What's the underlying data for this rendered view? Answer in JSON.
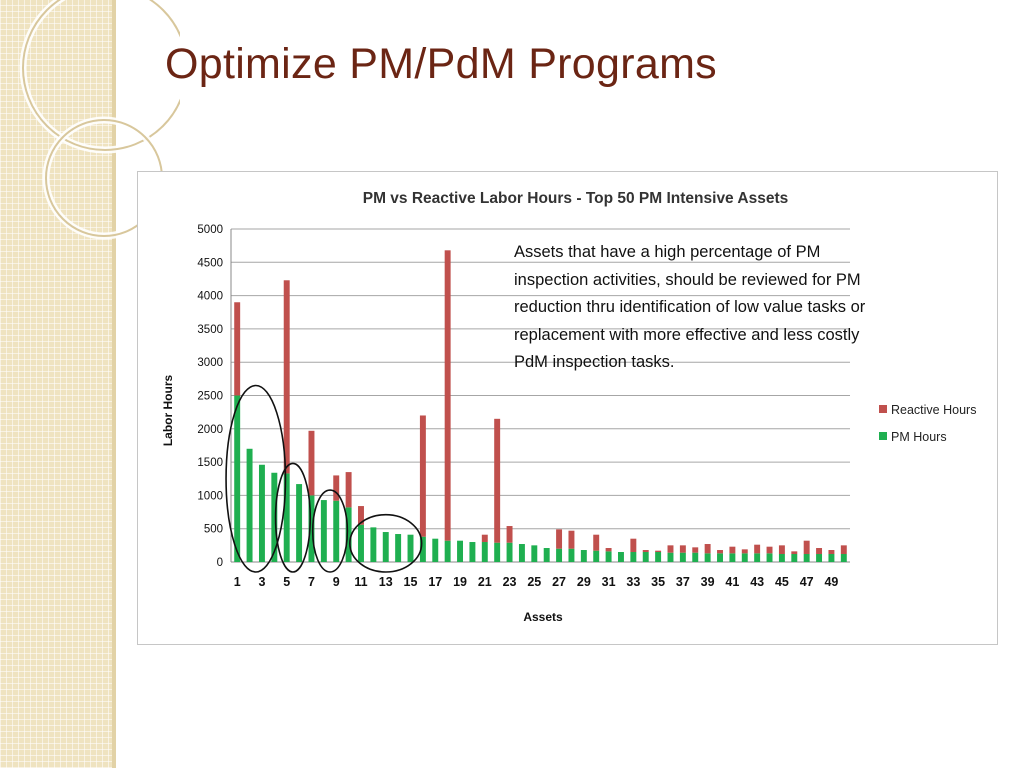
{
  "slide": {
    "title": "Optimize PM/PdM Programs",
    "callout": "Assets that have a high percentage of PM inspection activities, should be reviewed for PM reduction thru identification of low value tasks or replacement with more effective and less costly PdM inspection tasks."
  },
  "colors": {
    "title": "#6b2514",
    "reactive": "#c0504d",
    "pm": "#1faf50",
    "strip": "#efe3c0"
  },
  "chart_data": {
    "type": "bar",
    "stacked": true,
    "title": "PM vs Reactive Labor Hours - Top 50 PM Intensive Assets",
    "xlabel": "Assets",
    "ylabel": "Labor Hours",
    "ylim": [
      0,
      5000
    ],
    "yticks": [
      0,
      500,
      1000,
      1500,
      2000,
      2500,
      3000,
      3500,
      4000,
      4500,
      5000
    ],
    "xtick_labels": [
      "1",
      "3",
      "5",
      "7",
      "9",
      "11",
      "13",
      "15",
      "17",
      "19",
      "21",
      "23",
      "25",
      "27",
      "29",
      "31",
      "33",
      "35",
      "37",
      "39",
      "41",
      "43",
      "45",
      "47",
      "49"
    ],
    "grid": true,
    "legend_position": "right",
    "categories": [
      1,
      2,
      3,
      4,
      5,
      6,
      7,
      8,
      9,
      10,
      11,
      12,
      13,
      14,
      15,
      16,
      17,
      18,
      19,
      20,
      21,
      22,
      23,
      24,
      25,
      26,
      27,
      28,
      29,
      30,
      31,
      32,
      33,
      34,
      35,
      36,
      37,
      38,
      39,
      40,
      41,
      42,
      43,
      44,
      45,
      46,
      47,
      48,
      49,
      50
    ],
    "series": [
      {
        "name": "PM Hours",
        "color": "#1faf50",
        "values": [
          2500,
          1700,
          1460,
          1340,
          1330,
          1170,
          1000,
          930,
          920,
          820,
          560,
          520,
          450,
          420,
          410,
          380,
          350,
          320,
          320,
          300,
          300,
          290,
          290,
          270,
          250,
          210,
          200,
          200,
          180,
          170,
          160,
          150,
          150,
          150,
          150,
          140,
          140,
          140,
          130,
          130,
          130,
          130,
          130,
          130,
          120,
          120,
          120,
          120,
          120,
          120
        ]
      },
      {
        "name": "Reactive Hours",
        "color": "#c0504d",
        "values": [
          1400,
          0,
          0,
          0,
          2900,
          0,
          970,
          0,
          380,
          530,
          280,
          0,
          0,
          0,
          0,
          1820,
          0,
          4360,
          0,
          0,
          110,
          1860,
          250,
          0,
          0,
          0,
          290,
          270,
          0,
          240,
          50,
          0,
          200,
          30,
          20,
          110,
          110,
          80,
          140,
          50,
          100,
          60,
          130,
          100,
          130,
          40,
          200,
          90,
          60,
          130
        ]
      }
    ],
    "annotations": [
      {
        "shape": "ellipse",
        "assets": [
          1,
          4
        ]
      },
      {
        "shape": "ellipse",
        "assets": [
          5,
          6
        ]
      },
      {
        "shape": "ellipse",
        "assets": [
          8,
          9
        ]
      },
      {
        "shape": "ellipse",
        "assets": [
          11,
          15
        ]
      }
    ]
  }
}
